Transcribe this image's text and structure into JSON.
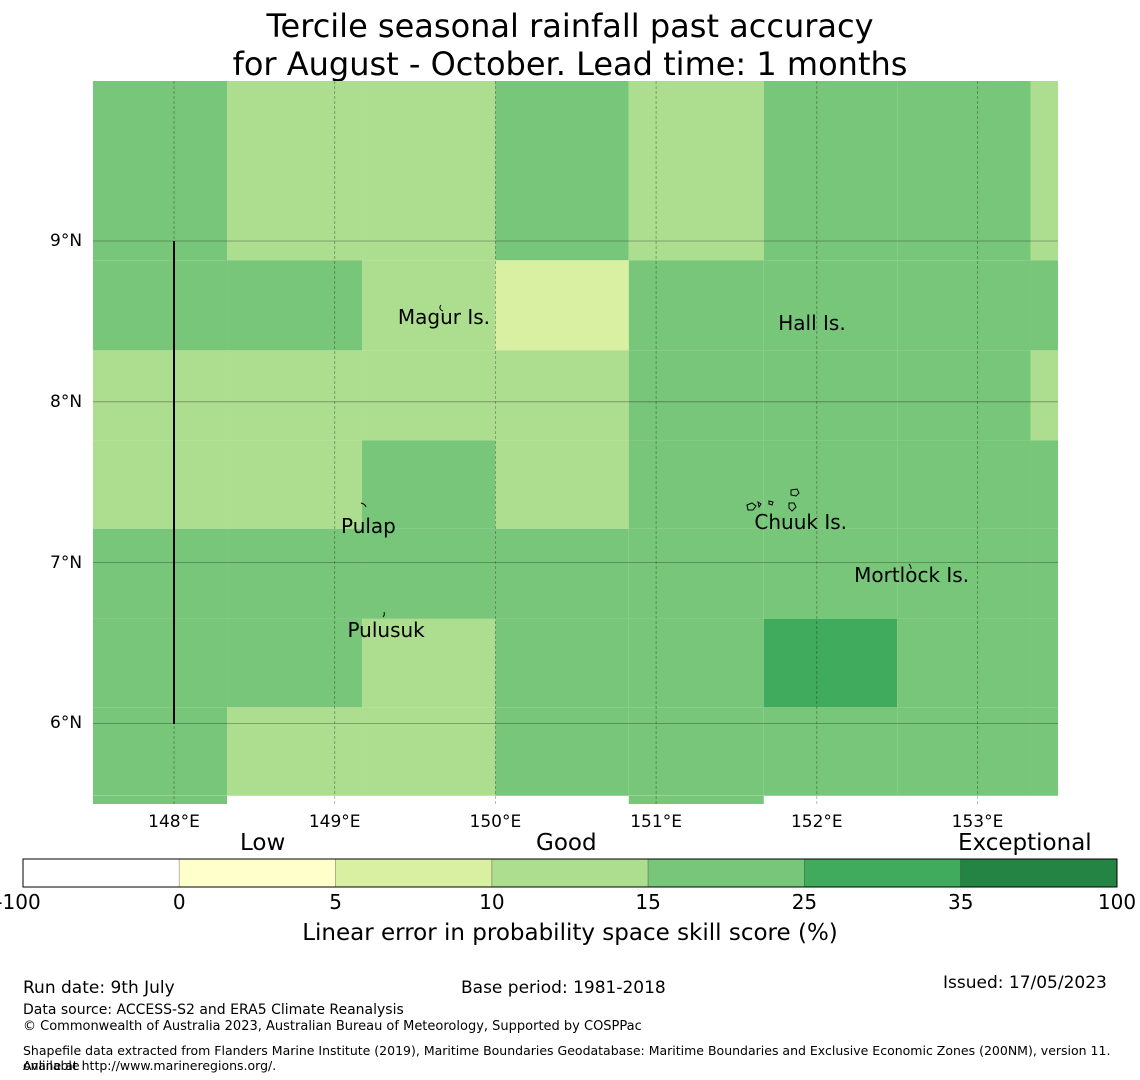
{
  "title": {
    "line1": "Tercile seasonal rainfall past accuracy",
    "line2": "for August - October. Lead time: 1 months"
  },
  "map": {
    "x_ticks": [
      "148°E",
      "149°E",
      "150°E",
      "151°E",
      "152°E",
      "153°E"
    ],
    "y_ticks": [
      "9°N",
      "8°N",
      "7°N",
      "6°N"
    ],
    "place_labels": [
      {
        "name": "Magur Is.",
        "lon": 149.68,
        "lat": 8.53
      },
      {
        "name": "Hall Is.",
        "lon": 151.97,
        "lat": 8.49
      },
      {
        "name": "Pulap",
        "lon": 149.21,
        "lat": 7.23
      },
      {
        "name": "Chuuk Is.",
        "lon": 151.9,
        "lat": 7.25
      },
      {
        "name": "Mortlock Is.",
        "lon": 152.59,
        "lat": 6.92
      },
      {
        "name": "Pulusuk",
        "lon": 149.32,
        "lat": 6.58
      }
    ],
    "grid_rows": [
      {
        "lat_top": 10.0,
        "lat_bottom": 8.88,
        "cells": [
          3,
          2,
          2,
          3,
          2,
          3,
          3,
          2
        ]
      },
      {
        "lat_top": 8.88,
        "lat_bottom": 8.32,
        "cells": [
          3,
          3,
          2,
          1,
          3,
          3,
          3,
          3
        ]
      },
      {
        "lat_top": 8.32,
        "lat_bottom": 7.76,
        "cells": [
          2,
          2,
          2,
          2,
          3,
          3,
          3,
          2
        ]
      },
      {
        "lat_top": 7.76,
        "lat_bottom": 7.21,
        "cells": [
          2,
          2,
          3,
          2,
          3,
          3,
          3,
          3
        ]
      },
      {
        "lat_top": 7.21,
        "lat_bottom": 6.65,
        "cells": [
          3,
          3,
          3,
          3,
          3,
          3,
          3,
          3
        ]
      },
      {
        "lat_top": 6.65,
        "lat_bottom": 6.1,
        "cells": [
          3,
          3,
          2,
          3,
          3,
          4,
          3,
          3
        ]
      },
      {
        "lat_top": 6.1,
        "lat_bottom": 5.55,
        "cells": [
          3,
          2,
          2,
          3,
          3,
          3,
          3,
          3
        ]
      }
    ],
    "col_lon_edges": [
      147.0,
      148.33,
      149.17,
      150.0,
      150.83,
      151.67,
      152.5,
      153.33,
      154.0
    ]
  },
  "colorbar": {
    "categories": [
      "Low",
      "Good",
      "Exceptional"
    ],
    "ticks": [
      "-100",
      "0",
      "5",
      "10",
      "15",
      "25",
      "35",
      "100"
    ],
    "colors": [
      "#ffffff",
      "#ffffcc",
      "#d9f0a3",
      "#addd8e",
      "#78c679",
      "#41ab5d",
      "#238443"
    ],
    "label": "Linear error in probability space skill score (%)"
  },
  "footer": {
    "run_date": "Run date: 9th July",
    "base_period": "Base period: 1981-2018",
    "issued": "Issued: 17/05/2023",
    "data_source": "Data source: ACCESS-S2 and ERA5 Climate Reanalysis",
    "copyright": "© Commonwealth of Australia 2023, Australian Bureau of Meteorology, Supported by COSPPac",
    "shapefile_line1": "Shapefile data extracted from Flanders Marine Institute (2019), Maritime Boundaries Geodatabase: Maritime Boundaries and Exclusive Economic Zones (200NM), version 11. Available",
    "shapefile_line2": "online at http://www.marineregions.org/."
  }
}
